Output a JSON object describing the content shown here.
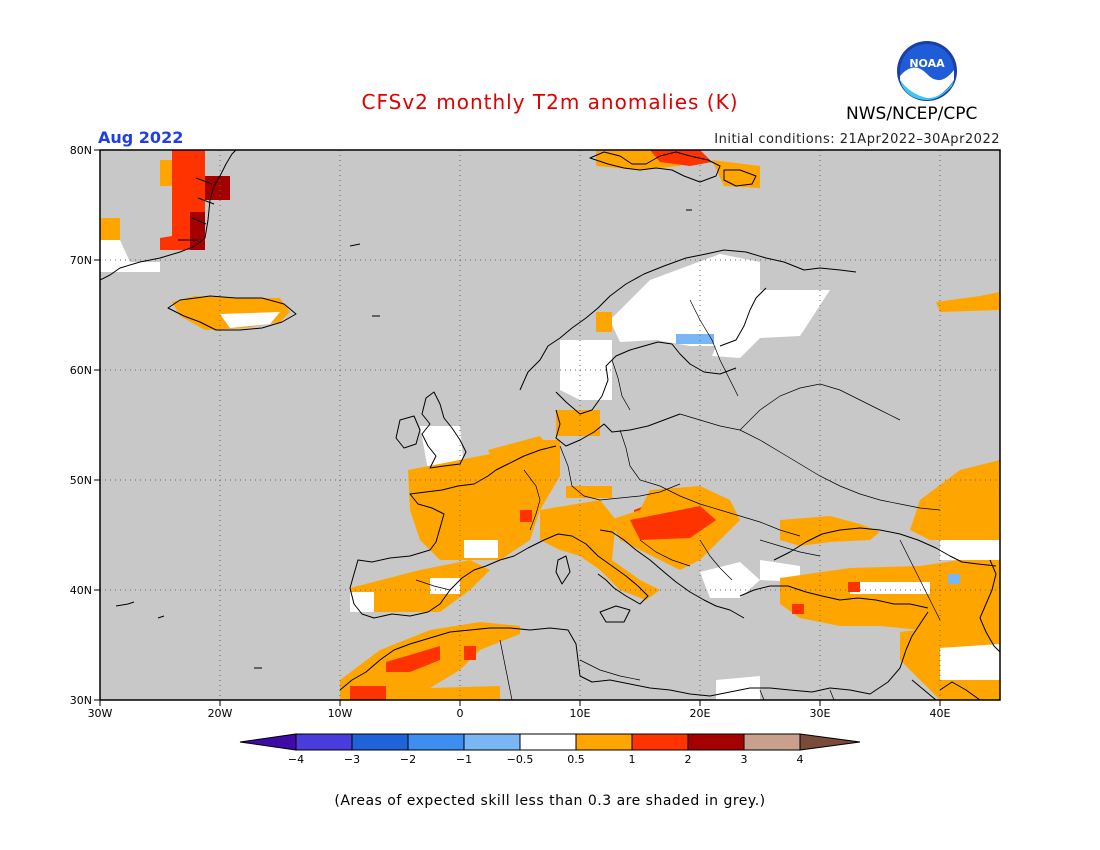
{
  "header": {
    "title": "CFSv2 monthly T2m anomalies (K)",
    "period": "Aug 2022",
    "initial_conditions": "Initial conditions: 21Apr2022–30Apr2022",
    "agency": "NWS/NCEP/CPC",
    "logo_text": "NOAA",
    "logo_icon": "noaa-logo-icon"
  },
  "axes": {
    "lat_labels": [
      "80N",
      "70N",
      "60N",
      "50N",
      "40N",
      "30N"
    ],
    "lon_labels": [
      "30W",
      "20W",
      "10W",
      "0",
      "10E",
      "20E",
      "30E",
      "40E"
    ]
  },
  "colorbar": {
    "tick_labels": [
      "−4",
      "−3",
      "−2",
      "−1",
      "−0.5",
      "0.5",
      "1",
      "2",
      "3",
      "4"
    ],
    "colors": [
      "#3e0aa8",
      "#4a3cdc",
      "#1f63d8",
      "#3c8ef0",
      "#7ab6f4",
      "#ffffff",
      "#ffa500",
      "#ff3300",
      "#a50000",
      "#c8a08c",
      "#7a4a3a"
    ]
  },
  "map_colors": {
    "grey": "#c8c8c8",
    "orange": "#ffa500",
    "red": "#ff3300",
    "dark_red": "#a50000",
    "light_blue": "#7ab6f4",
    "white": "#ffffff"
  },
  "footnote": "(Areas of expected skill less than 0.3 are shaded in grey.)"
}
